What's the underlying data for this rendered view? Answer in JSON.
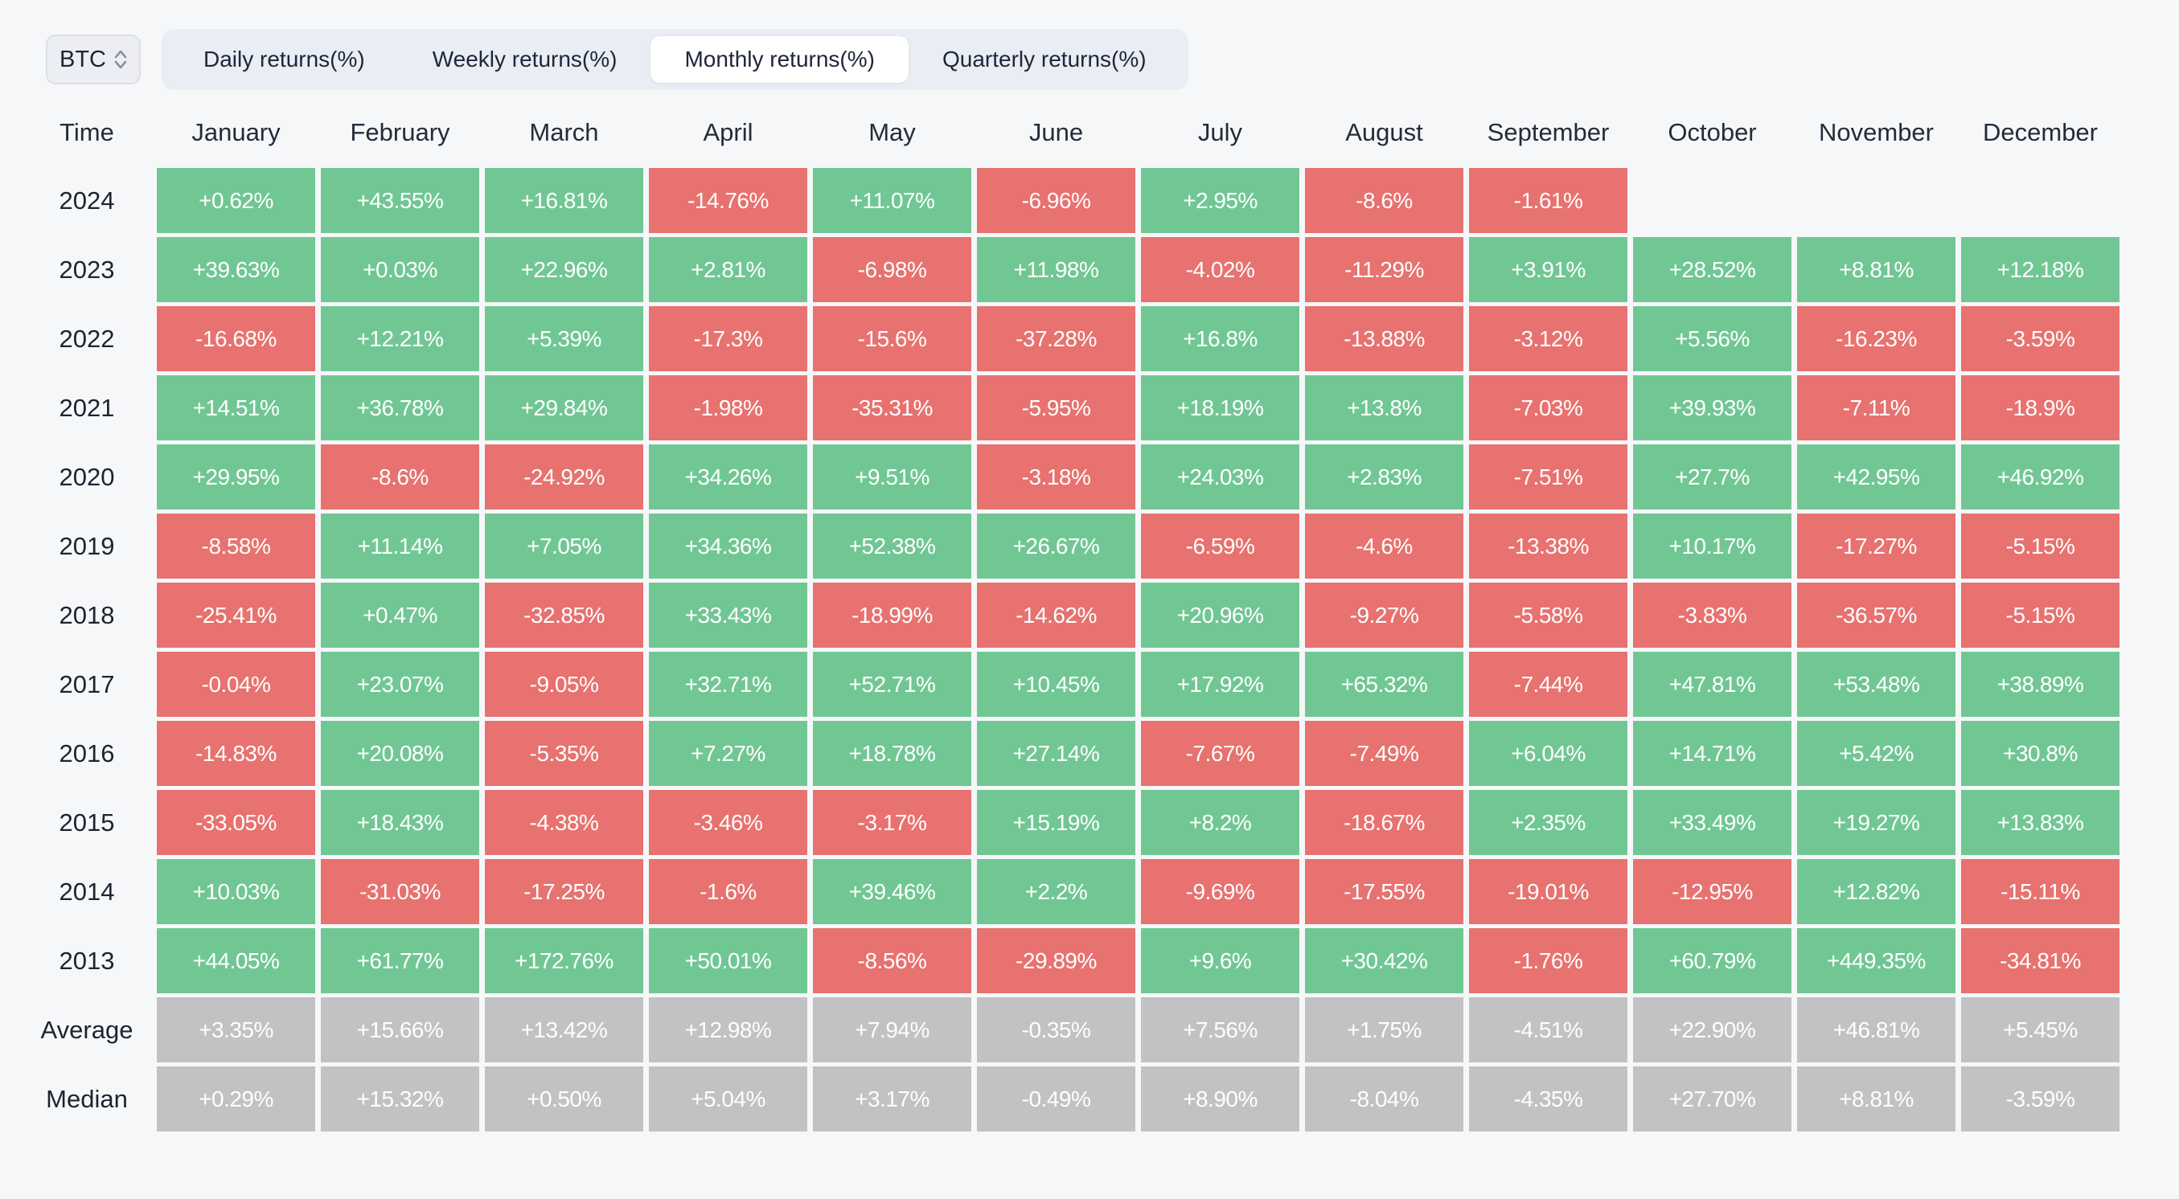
{
  "selector": {
    "value": "BTC"
  },
  "tabs": {
    "items": [
      {
        "label": "Daily returns(%)",
        "active": false
      },
      {
        "label": "Weekly returns(%)",
        "active": false
      },
      {
        "label": "Monthly returns(%)",
        "active": true
      },
      {
        "label": "Quarterly returns(%)",
        "active": false
      }
    ]
  },
  "colors": {
    "positive": "#71c794",
    "negative": "#e7726f",
    "summary": "#c2c2c4",
    "page_background": "#f6f7f9",
    "tabbar_background": "#e9edf4",
    "active_tab_background": "#ffffff"
  },
  "table": {
    "corner_label": "Time",
    "months": [
      "January",
      "February",
      "March",
      "April",
      "May",
      "June",
      "July",
      "August",
      "September",
      "October",
      "November",
      "December"
    ],
    "rows": [
      {
        "label": "2024",
        "kind": "year",
        "values": [
          "+0.62%",
          "+43.55%",
          "+16.81%",
          "-14.76%",
          "+11.07%",
          "-6.96%",
          "+2.95%",
          "-8.6%",
          "-1.61%",
          null,
          null,
          null
        ]
      },
      {
        "label": "2023",
        "kind": "year",
        "values": [
          "+39.63%",
          "+0.03%",
          "+22.96%",
          "+2.81%",
          "-6.98%",
          "+11.98%",
          "-4.02%",
          "-11.29%",
          "+3.91%",
          "+28.52%",
          "+8.81%",
          "+12.18%"
        ]
      },
      {
        "label": "2022",
        "kind": "year",
        "values": [
          "-16.68%",
          "+12.21%",
          "+5.39%",
          "-17.3%",
          "-15.6%",
          "-37.28%",
          "+16.8%",
          "-13.88%",
          "-3.12%",
          "+5.56%",
          "-16.23%",
          "-3.59%"
        ]
      },
      {
        "label": "2021",
        "kind": "year",
        "values": [
          "+14.51%",
          "+36.78%",
          "+29.84%",
          "-1.98%",
          "-35.31%",
          "-5.95%",
          "+18.19%",
          "+13.8%",
          "-7.03%",
          "+39.93%",
          "-7.11%",
          "-18.9%"
        ]
      },
      {
        "label": "2020",
        "kind": "year",
        "values": [
          "+29.95%",
          "-8.6%",
          "-24.92%",
          "+34.26%",
          "+9.51%",
          "-3.18%",
          "+24.03%",
          "+2.83%",
          "-7.51%",
          "+27.7%",
          "+42.95%",
          "+46.92%"
        ]
      },
      {
        "label": "2019",
        "kind": "year",
        "values": [
          "-8.58%",
          "+11.14%",
          "+7.05%",
          "+34.36%",
          "+52.38%",
          "+26.67%",
          "-6.59%",
          "-4.6%",
          "-13.38%",
          "+10.17%",
          "-17.27%",
          "-5.15%"
        ]
      },
      {
        "label": "2018",
        "kind": "year",
        "values": [
          "-25.41%",
          "+0.47%",
          "-32.85%",
          "+33.43%",
          "-18.99%",
          "-14.62%",
          "+20.96%",
          "-9.27%",
          "-5.58%",
          "-3.83%",
          "-36.57%",
          "-5.15%"
        ]
      },
      {
        "label": "2017",
        "kind": "year",
        "values": [
          "-0.04%",
          "+23.07%",
          "-9.05%",
          "+32.71%",
          "+52.71%",
          "+10.45%",
          "+17.92%",
          "+65.32%",
          "-7.44%",
          "+47.81%",
          "+53.48%",
          "+38.89%"
        ]
      },
      {
        "label": "2016",
        "kind": "year",
        "values": [
          "-14.83%",
          "+20.08%",
          "-5.35%",
          "+7.27%",
          "+18.78%",
          "+27.14%",
          "-7.67%",
          "-7.49%",
          "+6.04%",
          "+14.71%",
          "+5.42%",
          "+30.8%"
        ]
      },
      {
        "label": "2015",
        "kind": "year",
        "values": [
          "-33.05%",
          "+18.43%",
          "-4.38%",
          "-3.46%",
          "-3.17%",
          "+15.19%",
          "+8.2%",
          "-18.67%",
          "+2.35%",
          "+33.49%",
          "+19.27%",
          "+13.83%"
        ]
      },
      {
        "label": "2014",
        "kind": "year",
        "values": [
          "+10.03%",
          "-31.03%",
          "-17.25%",
          "-1.6%",
          "+39.46%",
          "+2.2%",
          "-9.69%",
          "-17.55%",
          "-19.01%",
          "-12.95%",
          "+12.82%",
          "-15.11%"
        ]
      },
      {
        "label": "2013",
        "kind": "year",
        "values": [
          "+44.05%",
          "+61.77%",
          "+172.76%",
          "+50.01%",
          "-8.56%",
          "-29.89%",
          "+9.6%",
          "+30.42%",
          "-1.76%",
          "+60.79%",
          "+449.35%",
          "-34.81%"
        ]
      },
      {
        "label": "Average",
        "kind": "summary",
        "values": [
          "+3.35%",
          "+15.66%",
          "+13.42%",
          "+12.98%",
          "+7.94%",
          "-0.35%",
          "+7.56%",
          "+1.75%",
          "-4.51%",
          "+22.90%",
          "+46.81%",
          "+5.45%"
        ]
      },
      {
        "label": "Median",
        "kind": "summary",
        "values": [
          "+0.29%",
          "+15.32%",
          "+0.50%",
          "+5.04%",
          "+3.17%",
          "-0.49%",
          "+8.90%",
          "-8.04%",
          "-4.35%",
          "+27.70%",
          "+8.81%",
          "-3.59%"
        ]
      }
    ]
  }
}
